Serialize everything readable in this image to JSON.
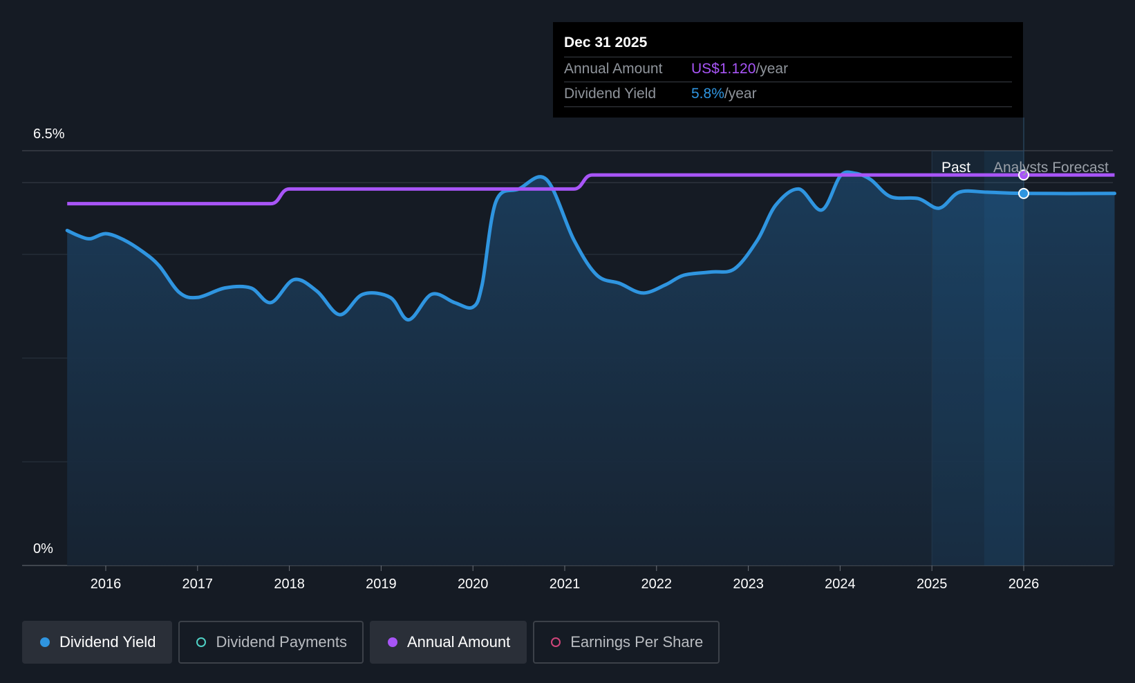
{
  "tooltip": {
    "date": "Dec 31 2025",
    "rows": [
      {
        "label": "Annual Amount",
        "value": "US$1.120",
        "unit": "/year",
        "color": "#a855f7"
      },
      {
        "label": "Dividend Yield",
        "value": "5.8%",
        "unit": "/year",
        "color": "#2f95e0"
      }
    ]
  },
  "legend": [
    {
      "label": "Dividend Yield",
      "color": "#2f95e0",
      "active": true,
      "filled": true
    },
    {
      "label": "Dividend Payments",
      "color": "#4fd1c5",
      "active": false,
      "filled": false
    },
    {
      "label": "Annual Amount",
      "color": "#a855f7",
      "active": true,
      "filled": true
    },
    {
      "label": "Earnings Per Share",
      "color": "#d0457a",
      "active": false,
      "filled": false
    }
  ],
  "chart_data": {
    "type": "line",
    "y_axis": {
      "top_label": "6.5%",
      "bottom_label": "0%",
      "ylim": [
        0,
        6.5
      ]
    },
    "x_axis": {
      "ticks": [
        2016,
        2017,
        2018,
        2019,
        2020,
        2021,
        2022,
        2023,
        2024,
        2025,
        2026
      ],
      "xlim": [
        2015.0,
        2026.99
      ]
    },
    "grid": true,
    "regions": [
      {
        "label": "Past",
        "from": 2025.0,
        "to": 2026.0
      },
      {
        "label": "Analysts Forecast",
        "from": 2026.0,
        "to": 2026.99
      }
    ],
    "series": [
      {
        "name": "Dividend Yield",
        "color": "#2f95e0",
        "x": [
          2015.58,
          2015.7,
          2015.83,
          2016.0,
          2016.2,
          2016.4,
          2016.58,
          2016.8,
          2017.0,
          2017.3,
          2017.58,
          2017.8,
          2018.05,
          2018.3,
          2018.55,
          2018.8,
          2019.1,
          2019.3,
          2019.55,
          2019.8,
          2020.0,
          2020.1,
          2020.25,
          2020.5,
          2020.8,
          2021.1,
          2021.35,
          2021.6,
          2021.85,
          2022.1,
          2022.3,
          2022.6,
          2022.85,
          2023.1,
          2023.3,
          2023.55,
          2023.8,
          2024.0,
          2024.15,
          2024.33,
          2024.55,
          2024.85,
          2025.08,
          2025.3,
          2025.6,
          2026.0,
          2026.99
        ],
        "y": [
          5.25,
          5.17,
          5.12,
          5.2,
          5.1,
          4.92,
          4.7,
          4.28,
          4.2,
          4.35,
          4.35,
          4.12,
          4.48,
          4.3,
          3.93,
          4.25,
          4.2,
          3.85,
          4.25,
          4.12,
          4.05,
          4.4,
          5.7,
          5.9,
          6.05,
          5.1,
          4.55,
          4.42,
          4.27,
          4.4,
          4.55,
          4.6,
          4.65,
          5.1,
          5.65,
          5.9,
          5.57,
          6.1,
          6.15,
          6.05,
          5.78,
          5.75,
          5.6,
          5.85,
          5.85,
          5.83,
          5.83
        ]
      },
      {
        "name": "Annual Amount",
        "color": "#a855f7",
        "x": [
          2015.58,
          2017.8,
          2018.0,
          2021.1,
          2021.3,
          2026.99
        ],
        "y": [
          5.67,
          5.67,
          5.9,
          5.9,
          6.12,
          6.12
        ]
      }
    ]
  }
}
